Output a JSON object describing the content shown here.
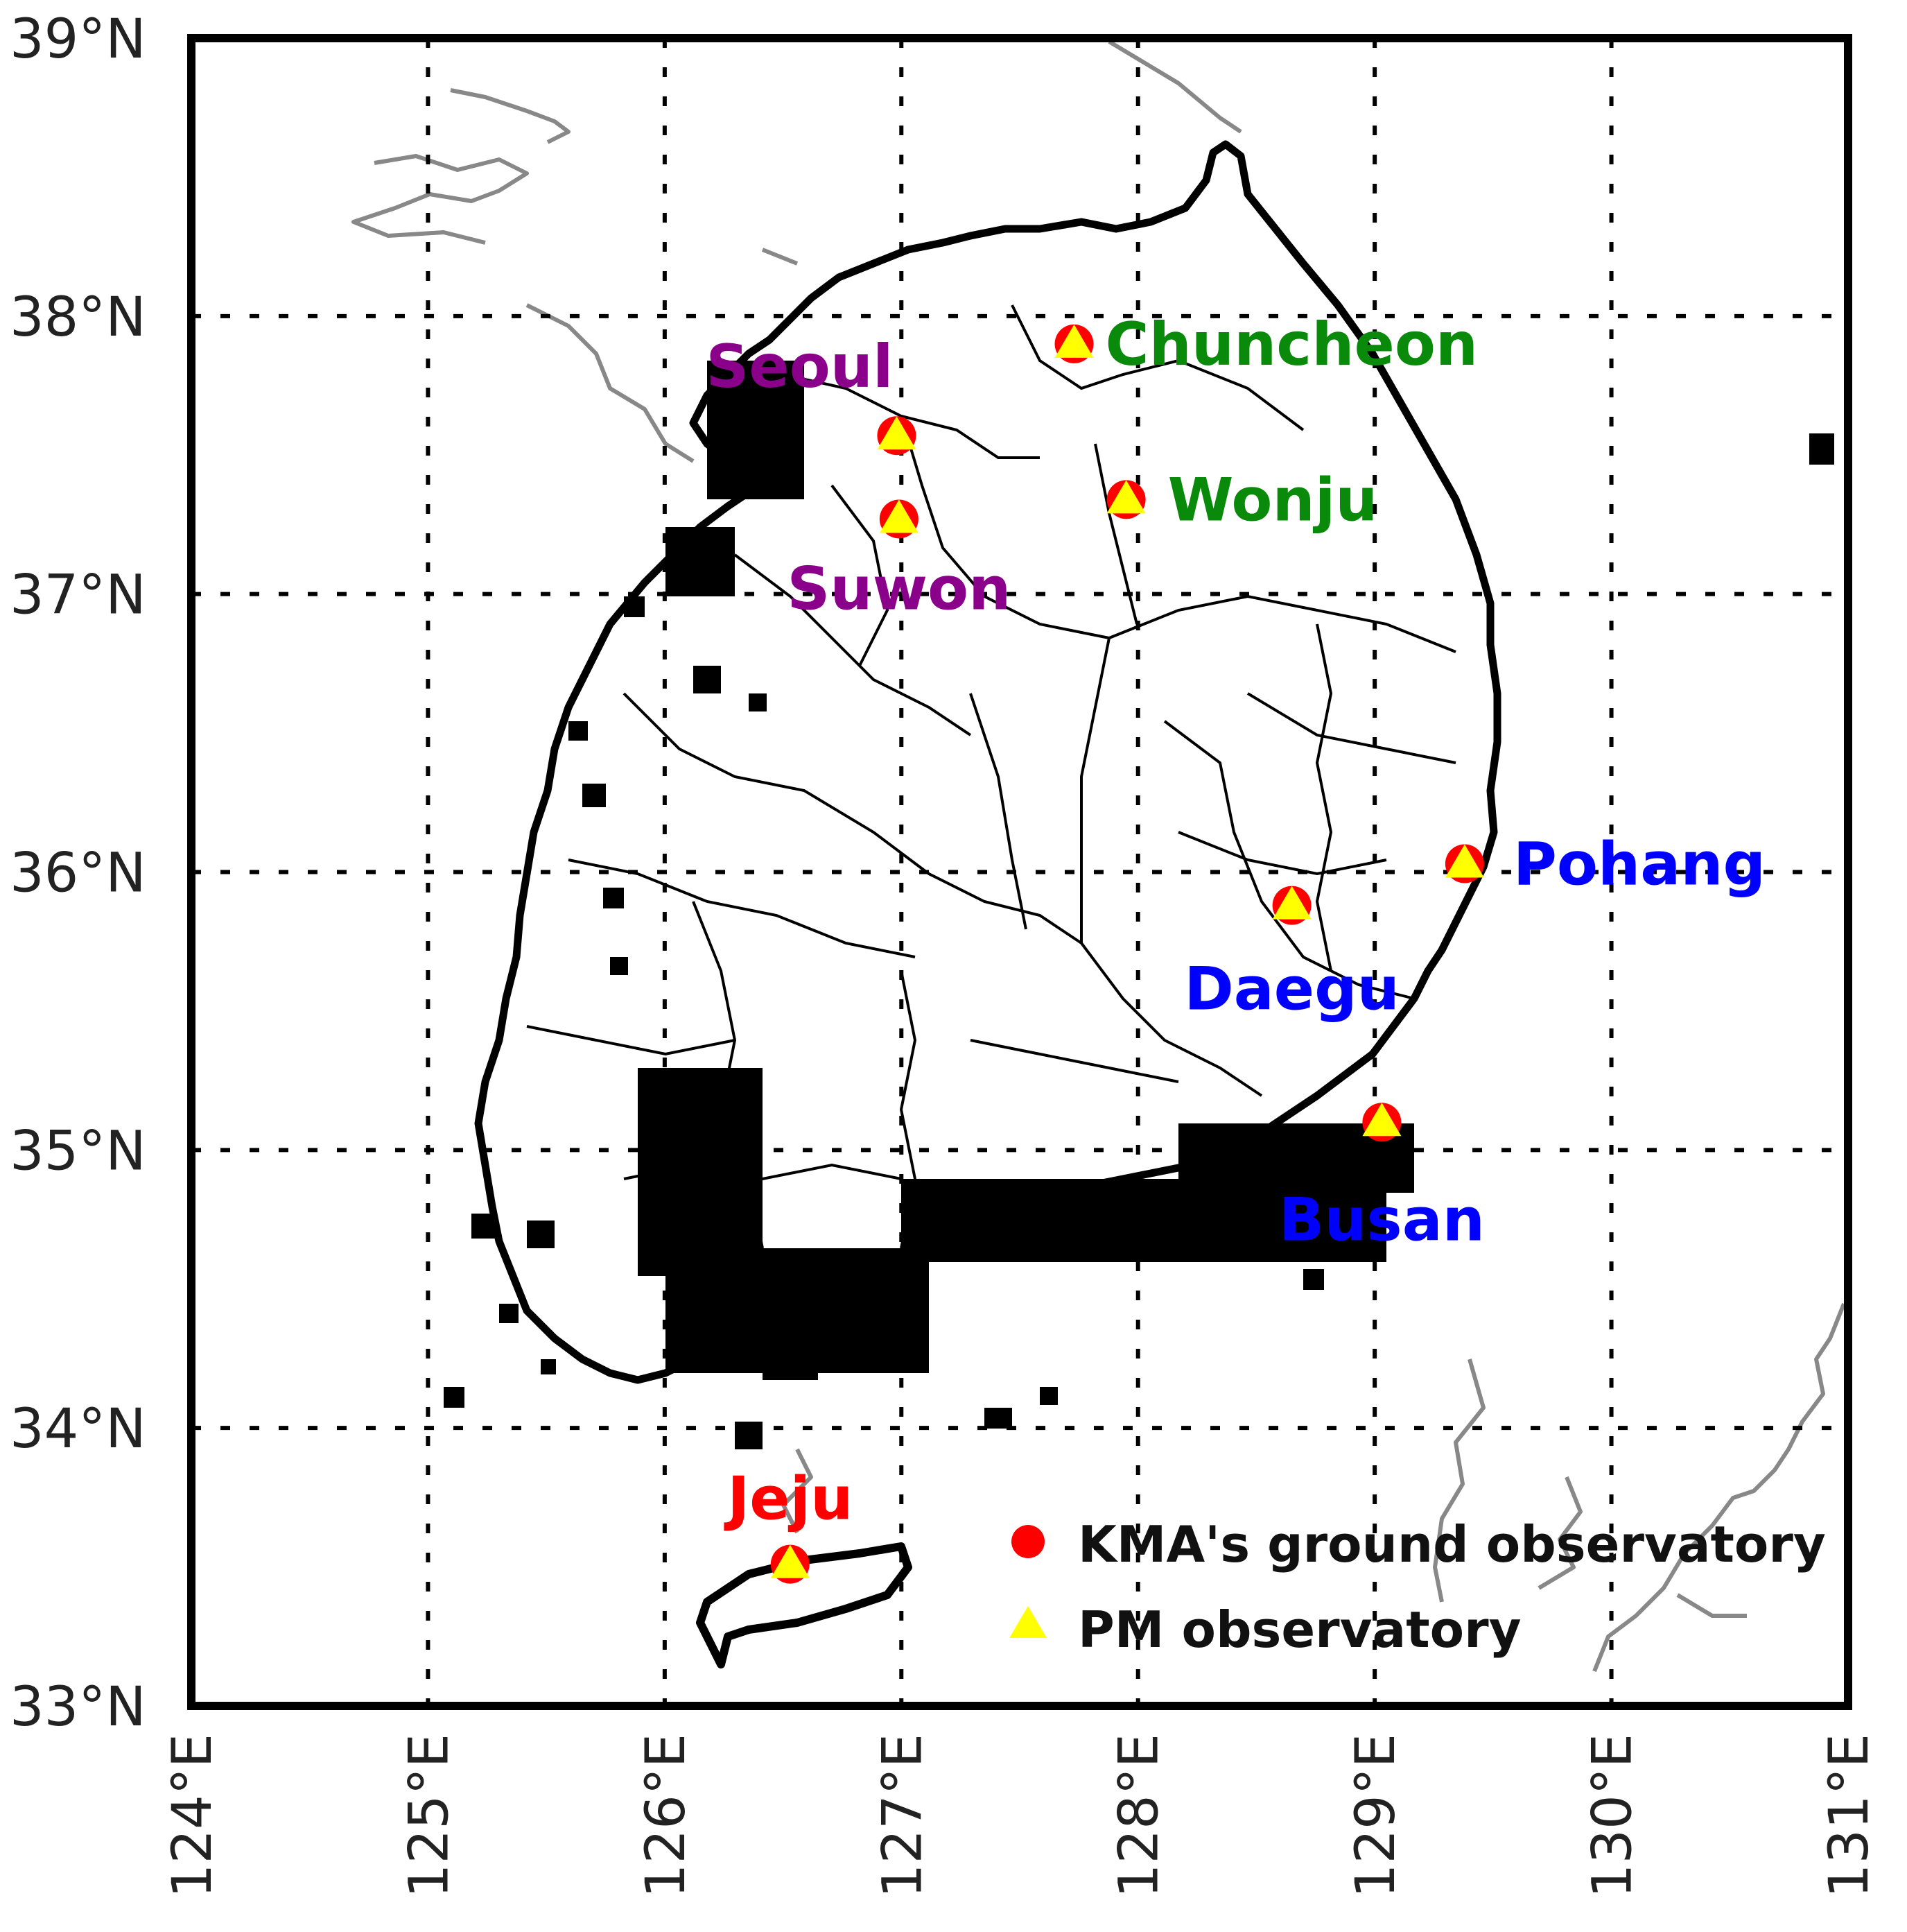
{
  "map": {
    "lon_range": [
      124,
      131
    ],
    "lat_range": [
      33,
      39
    ],
    "lon_ticks": [
      {
        "value": 124,
        "label": "124°E"
      },
      {
        "value": 125,
        "label": "125°E"
      },
      {
        "value": 126,
        "label": "126°E"
      },
      {
        "value": 127,
        "label": "127°E"
      },
      {
        "value": 128,
        "label": "128°E"
      },
      {
        "value": 129,
        "label": "129°E"
      },
      {
        "value": 130,
        "label": "130°E"
      },
      {
        "value": 131,
        "label": "131°E"
      }
    ],
    "lat_ticks": [
      {
        "value": 33,
        "label": "33°N"
      },
      {
        "value": 34,
        "label": "34°N"
      },
      {
        "value": 35,
        "label": "35°N"
      },
      {
        "value": 36,
        "label": "36°N"
      },
      {
        "value": 37,
        "label": "37°N"
      },
      {
        "value": 38,
        "label": "38°N"
      },
      {
        "value": 39,
        "label": "39°N"
      }
    ],
    "gridlines": true,
    "grid_style": "dotted",
    "colors": {
      "land_border": "#000000",
      "neighbor_coast": "#888888",
      "kma_marker": "#ff0000",
      "pm_marker": "#ffff00",
      "group_capital": "#8b008b",
      "group_gangwon": "#0a8a0a",
      "group_southeast": "#0000ff",
      "group_jeju": "#ff0000"
    }
  },
  "stations": [
    {
      "name": "Seoul",
      "lon": 126.98,
      "lat": 37.57,
      "color": "#8b008b"
    },
    {
      "name": "Suwon",
      "lon": 126.99,
      "lat": 37.27,
      "color": "#8b008b"
    },
    {
      "name": "Chuncheon",
      "lon": 127.73,
      "lat": 37.9,
      "color": "#0a8a0a"
    },
    {
      "name": "Wonju",
      "lon": 127.95,
      "lat": 37.34,
      "color": "#0a8a0a"
    },
    {
      "name": "Pohang",
      "lon": 129.38,
      "lat": 36.03,
      "color": "#0000ff"
    },
    {
      "name": "Daegu",
      "lon": 128.65,
      "lat": 35.88,
      "color": "#0000ff"
    },
    {
      "name": "Busan",
      "lon": 129.03,
      "lat": 35.1,
      "color": "#0000ff"
    },
    {
      "name": "Jeju",
      "lon": 126.53,
      "lat": 33.51,
      "color": "#ff0000"
    }
  ],
  "legend": {
    "items": [
      {
        "label": "KMA's ground observatory",
        "marker": "circle",
        "color": "#ff0000"
      },
      {
        "label": "PM observatory",
        "marker": "triangle",
        "color": "#ffff00"
      }
    ]
  }
}
